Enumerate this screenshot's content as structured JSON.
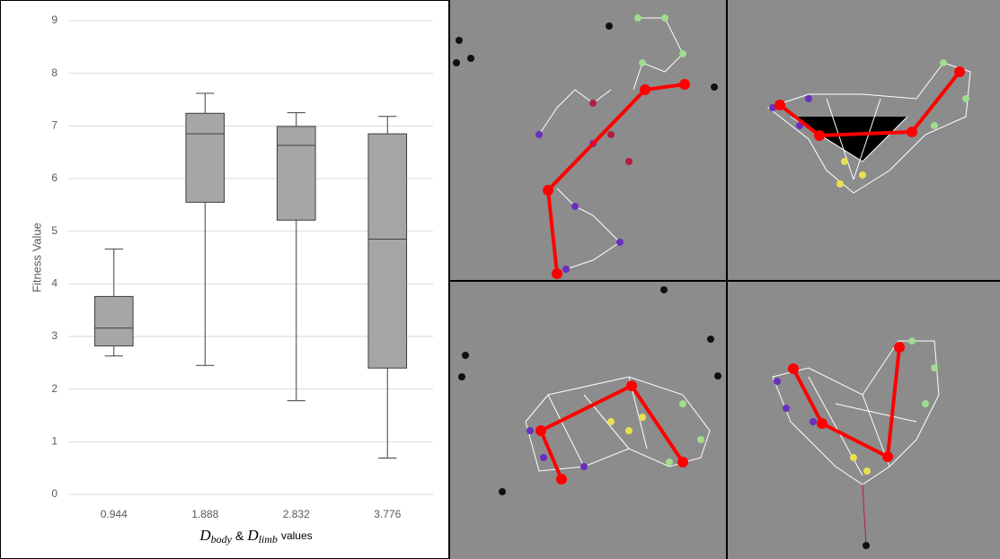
{
  "chart_data": {
    "type": "box",
    "y_label": "Fitness Value",
    "x_label": {
      "var1": "D",
      "sub1": "body",
      "joiner": "&",
      "var2": "D",
      "sub2": "limb",
      "suffix": "values"
    },
    "categories": [
      "0.944",
      "1.888",
      "2.832",
      "3.776"
    ],
    "boxes": [
      {
        "min": 2.63,
        "q1": 2.82,
        "median": 3.16,
        "q3": 3.76,
        "max": 4.66
      },
      {
        "min": 2.45,
        "q1": 5.55,
        "median": 6.85,
        "q3": 7.24,
        "max": 7.62
      },
      {
        "min": 1.78,
        "q1": 5.21,
        "median": 6.63,
        "q3": 6.99,
        "max": 7.25
      },
      {
        "min": 0.69,
        "q1": 2.4,
        "median": 4.85,
        "q3": 6.85,
        "max": 7.18
      }
    ],
    "color": "#a6a6a6",
    "ylim": [
      0,
      9
    ],
    "yticks": [
      0,
      1,
      2,
      3,
      4,
      5,
      6,
      7,
      8,
      9
    ],
    "grid": true
  }
}
